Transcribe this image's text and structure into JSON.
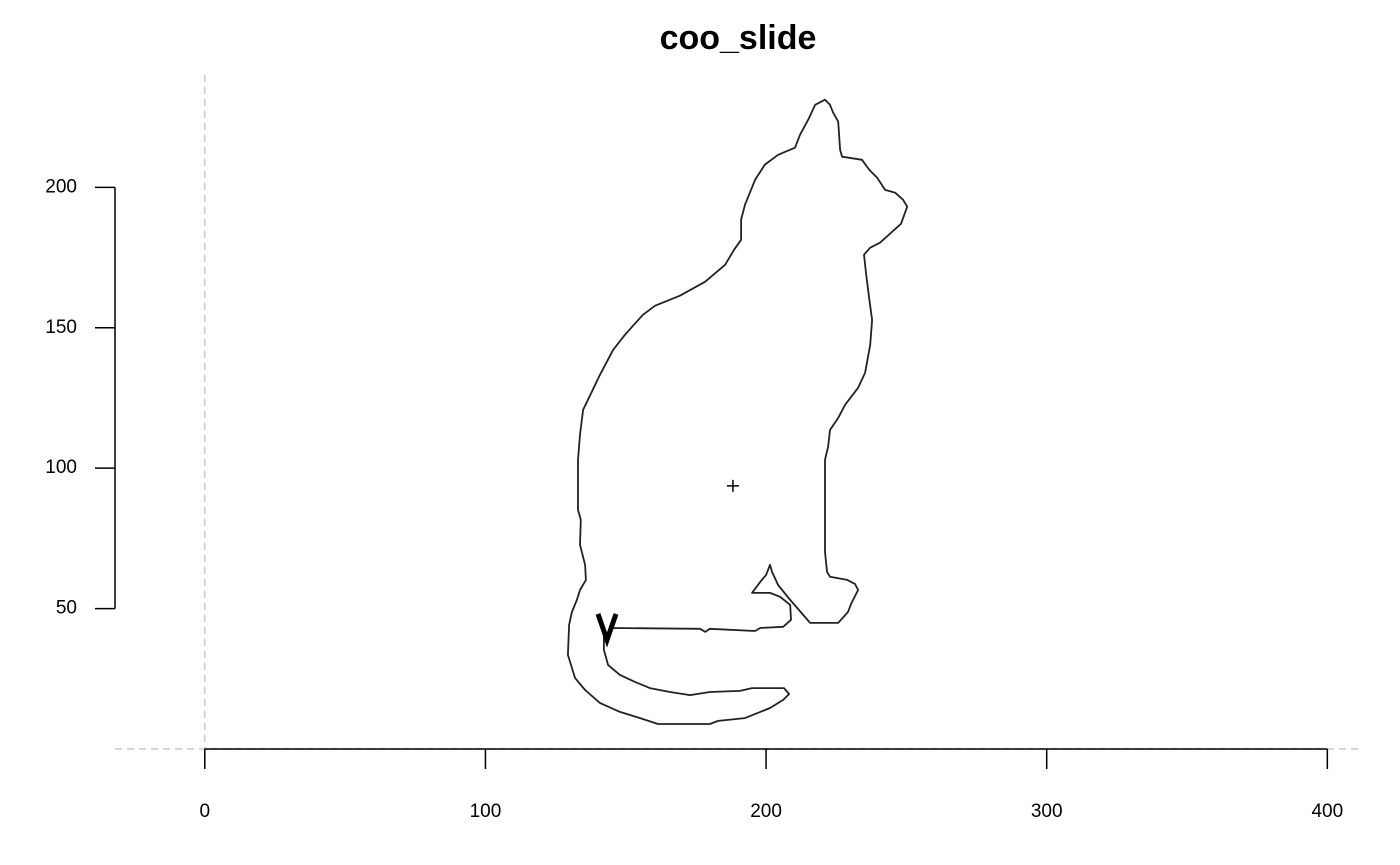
{
  "chart_data": {
    "type": "line",
    "title": "coo_slide",
    "x": [
      145.1,
      176.5,
      178.3,
      180.0,
      196.1,
      197.9,
      206.1,
      208.9,
      208.6,
      205.0,
      201.4,
      195.0,
      197.9,
      200.0,
      201.4,
      202.1,
      204.3,
      208.6,
      215.7,
      225.7,
      229.2,
      230.3,
      232.8,
      231.7,
      228.9,
      222.8,
      221.7,
      221.0,
      221.0,
      222.1,
      222.8,
      225.7,
      228.2,
      232.8,
      235.3,
      237.1,
      237.8,
      236.7,
      235.7,
      234.9,
      237.1,
      240.6,
      248.1,
      250.3,
      248.8,
      246.0,
      242.4,
      239.6,
      236.7,
      234.2,
      227.1,
      226.4,
      225.7,
      223.9,
      222.8,
      221.0,
      217.5,
      215.0,
      212.1,
      210.3,
      204.3,
      199.6,
      196.1,
      192.5,
      191.1,
      191.1,
      188.6,
      185.4,
      178.3,
      169.3,
      160.4,
      156.1,
      149.7,
      145.5,
      140.8,
      136.5,
      134.8,
      133.7,
      133.0,
      133.0,
      134.0,
      133.7,
      135.5,
      135.8,
      133.7,
      132.6,
      130.8,
      129.8,
      129.4,
      131.9,
      135.5,
      140.8,
      147.9,
      155.1,
      161.5,
      180.0,
      182.9,
      192.5,
      201.4,
      206.1,
      208.2,
      206.4,
      195.0,
      190.7,
      180.0,
      172.9,
      165.8,
      158.6,
      153.3,
      147.9,
      143.7,
      142.2,
      142.2
    ],
    "y": [
      43.1,
      42.8,
      41.7,
      42.8,
      42.0,
      43.1,
      43.5,
      46.0,
      51.3,
      54.2,
      55.6,
      55.6,
      59.5,
      62.0,
      65.6,
      63.1,
      58.4,
      53.1,
      44.9,
      44.9,
      48.8,
      51.7,
      56.6,
      58.8,
      60.2,
      61.3,
      63.1,
      70.2,
      103.0,
      107.6,
      113.6,
      117.9,
      122.6,
      128.6,
      134.0,
      143.9,
      152.8,
      160.7,
      168.9,
      176.0,
      178.5,
      180.3,
      187.0,
      193.1,
      195.6,
      198.1,
      199.1,
      203.4,
      206.3,
      209.8,
      210.9,
      213.4,
      223.4,
      226.6,
      229.4,
      231.2,
      229.4,
      224.1,
      218.7,
      214.1,
      211.6,
      208.1,
      202.7,
      193.8,
      188.5,
      181.3,
      177.8,
      172.4,
      166.4,
      161.4,
      157.8,
      154.6,
      147.5,
      142.1,
      133.2,
      124.3,
      120.8,
      111.9,
      103.0,
      85.1,
      81.6,
      72.7,
      65.6,
      60.2,
      56.6,
      53.1,
      48.8,
      44.2,
      33.5,
      25.3,
      21.0,
      16.4,
      13.2,
      11.0,
      8.9,
      8.9,
      10.0,
      11.0,
      14.6,
      17.5,
      19.6,
      21.7,
      21.7,
      20.7,
      20.3,
      19.2,
      20.3,
      21.7,
      23.9,
      26.4,
      29.9,
      35.3,
      39.9
    ],
    "closed": true,
    "centroid": [
      188.2,
      93.7
    ],
    "color": "#222222",
    "xlim": [
      -32,
      412
    ],
    "ylim": [
      0,
      240
    ],
    "xticks": [
      0,
      100,
      200,
      300,
      400
    ],
    "yticks": [
      50,
      100,
      150,
      200
    ]
  }
}
